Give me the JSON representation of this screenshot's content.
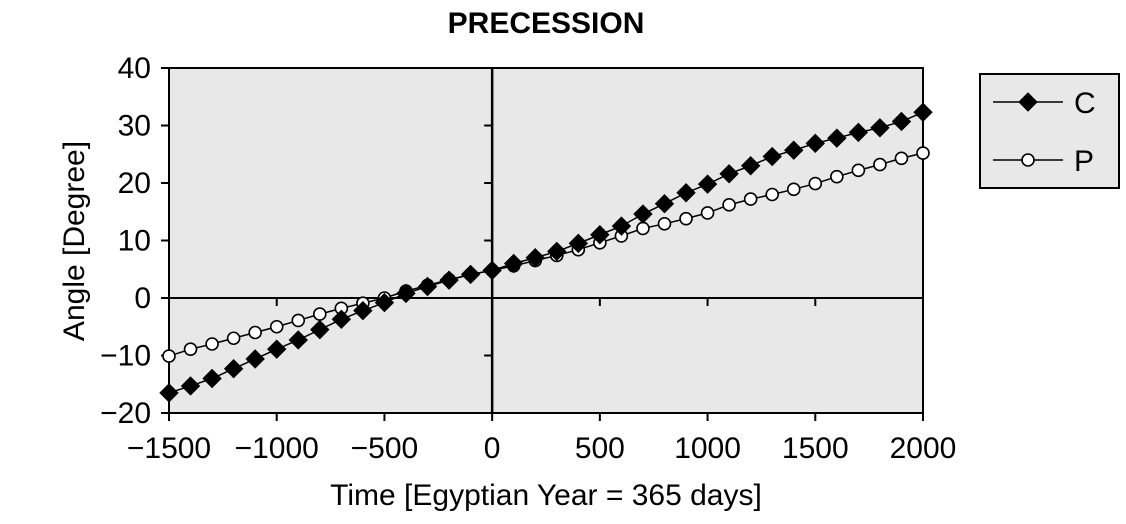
{
  "chart_data": {
    "type": "line",
    "title": "PRECESSION",
    "xlabel": "Time [Egyptian Year = 365 days]",
    "ylabel": "Angle [Degree]",
    "xlim": [
      -1500,
      2000
    ],
    "ylim": [
      -20,
      40
    ],
    "x_ticks": [
      -1500,
      -1000,
      -500,
      0,
      500,
      1000,
      1500,
      2000
    ],
    "x_tick_labels": [
      "−1500",
      "−1000",
      "−500",
      "0",
      "500",
      "1000",
      "1500",
      "2000"
    ],
    "y_ticks": [
      -20,
      -10,
      0,
      10,
      20,
      30,
      40
    ],
    "y_tick_labels": [
      "−20",
      "−10",
      "0",
      "10",
      "20",
      "30",
      "40"
    ],
    "grid": false,
    "background_color": "#e8e8e8",
    "legend_position": "right",
    "x": [
      -1500,
      -1400,
      -1300,
      -1200,
      -1100,
      -1000,
      -900,
      -800,
      -700,
      -600,
      -500,
      -400,
      -300,
      -200,
      -100,
      0,
      100,
      200,
      300,
      400,
      500,
      600,
      700,
      800,
      900,
      1000,
      1100,
      1200,
      1300,
      1400,
      1500,
      1600,
      1700,
      1800,
      1900,
      2000
    ],
    "series": [
      {
        "name": "C",
        "marker": "diamond-filled",
        "color": "#000000",
        "values": [
          -16.5,
          -15.3,
          -14.0,
          -12.3,
          -10.6,
          -8.9,
          -7.3,
          -5.5,
          -3.7,
          -2.2,
          -0.8,
          0.8,
          2.0,
          3.1,
          4.1,
          4.8,
          6.0,
          7.0,
          8.1,
          9.5,
          11.0,
          12.5,
          14.6,
          16.4,
          18.3,
          19.8,
          21.6,
          23.0,
          24.6,
          25.7,
          26.9,
          27.8,
          28.8,
          29.6,
          30.7,
          32.3
        ]
      },
      {
        "name": "P",
        "marker": "circle-open",
        "color": "#000000",
        "values": [
          -10.1,
          -8.9,
          -8.0,
          -7.0,
          -6.0,
          -5.0,
          -3.9,
          -2.8,
          -1.8,
          -0.9,
          0.0,
          1.2,
          2.2,
          3.2,
          4.1,
          4.8,
          5.6,
          6.5,
          7.4,
          8.4,
          9.6,
          10.8,
          12.1,
          12.9,
          13.8,
          14.8,
          16.2,
          17.2,
          18.0,
          18.9,
          19.9,
          21.1,
          22.2,
          23.2,
          24.3,
          25.2
        ]
      }
    ]
  }
}
